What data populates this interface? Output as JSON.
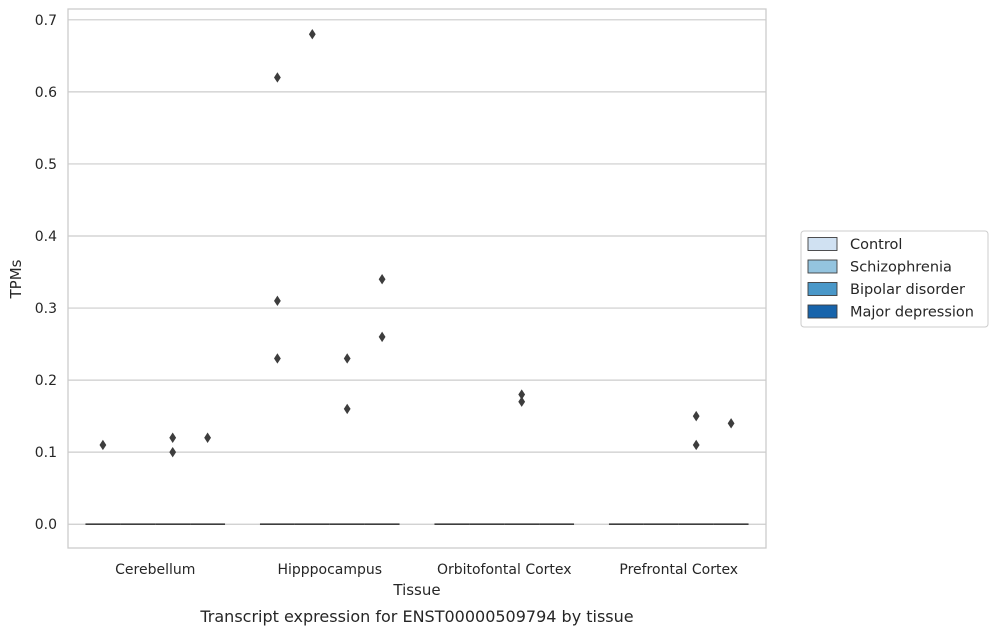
{
  "chart_data": {
    "type": "box",
    "caption": "Transcript expression for ENST00000509794 by tissue",
    "xlabel": "Tissue",
    "ylabel": "TPMs",
    "ylim": [
      -0.033,
      0.715
    ],
    "yticks": [
      0.0,
      0.1,
      0.2,
      0.3,
      0.4,
      0.5,
      0.6,
      0.7
    ],
    "ytick_labels": [
      "0.0",
      "0.1",
      "0.2",
      "0.3",
      "0.4",
      "0.5",
      "0.6",
      "0.7"
    ],
    "grid": "horizontal",
    "legend_position": "right",
    "categories": [
      "Cerebellum",
      "Hipppocampus",
      "Orbitofontal Cortex",
      "Prefrontal Cortex"
    ],
    "series": [
      {
        "name": "Control",
        "color": "#d0e1f2",
        "median": [
          0,
          0,
          0,
          0
        ],
        "outliers": [
          [
            0.11
          ],
          [
            0.31,
            0.23,
            0.62
          ],
          [],
          []
        ]
      },
      {
        "name": "Schizophrenia",
        "color": "#94c4df",
        "median": [
          0,
          0,
          0,
          0
        ],
        "outliers": [
          [],
          [
            0.68
          ],
          [],
          []
        ]
      },
      {
        "name": "Bipolar disorder",
        "color": "#4a98c9",
        "median": [
          0,
          0,
          0,
          0
        ],
        "outliers": [
          [
            0.12,
            0.1
          ],
          [
            0.23,
            0.16
          ],
          [
            0.18,
            0.17
          ],
          [
            0.15,
            0.11
          ]
        ]
      },
      {
        "name": "Major depression",
        "color": "#1764ab",
        "median": [
          0,
          0,
          0,
          0
        ],
        "outliers": [
          [
            0.12
          ],
          [
            0.34,
            0.26
          ],
          [],
          [
            0.14
          ]
        ]
      }
    ]
  }
}
